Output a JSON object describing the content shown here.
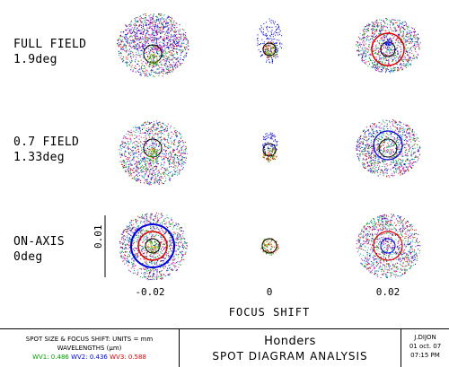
{
  "rows": [
    {
      "field": "FULL FIELD",
      "angle": "1.9deg"
    },
    {
      "field": "0.7 FIELD",
      "angle": "1.33deg"
    },
    {
      "field": "ON-AXIS",
      "angle": "0deg"
    }
  ],
  "x_ticks": [
    "-0.02",
    "0",
    "0.02"
  ],
  "x_axis_label": "FOCUS SHIFT",
  "scale_bar_label": "0.01",
  "footer": {
    "units_line": "SPOT SIZE & FOCUS SHIFT: UNITS = mm",
    "wavelengths_label": "WAVELENGTHS (µm)",
    "wv1": "WV1: 0.486",
    "wv2": "WV2: 0.436",
    "wv3": "WV3: 0.588",
    "title": "Honders",
    "subtitle": "SPOT DIAGRAM ANALYSIS",
    "author": "J.DIJON",
    "date": "01 oct. 07",
    "time": "07:15 PM"
  },
  "colors": {
    "wv1": "#00a000",
    "wv2": "#0000e0",
    "wv3": "#e00000",
    "ring": "#000000",
    "yellow": "#d0b000",
    "cyan": "#00b0b0",
    "magenta": "#c000c0"
  }
}
